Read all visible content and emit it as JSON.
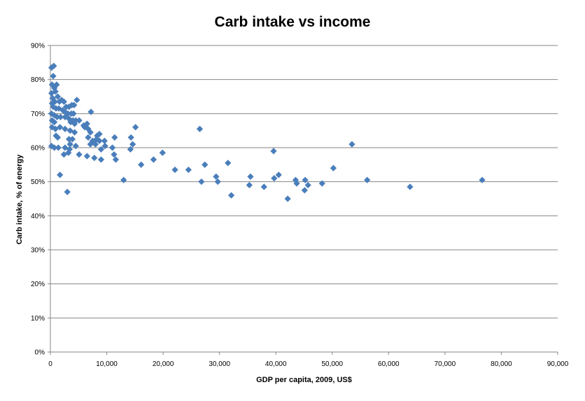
{
  "chart_data": {
    "type": "scatter",
    "title": "Carb intake vs income",
    "xlabel": "GDP per capita, 2009, US$",
    "ylabel": "Carb intake, % of energy",
    "xlim": [
      0,
      90000
    ],
    "ylim": [
      0,
      90
    ],
    "x_ticks": [
      "0",
      "10,000",
      "20,000",
      "30,000",
      "40,000",
      "50,000",
      "60,000",
      "70,000",
      "80,000",
      "90,000"
    ],
    "y_ticks": [
      "0%",
      "10%",
      "20%",
      "30%",
      "40%",
      "50%",
      "60%",
      "70%",
      "80%",
      "90%"
    ],
    "grid": "horizontal",
    "marker_color": "#4a7ebb",
    "marker": "diamond",
    "points": [
      {
        "x": 200,
        "y": 83.5
      },
      {
        "x": 600,
        "y": 84
      },
      {
        "x": 500,
        "y": 81
      },
      {
        "x": 300,
        "y": 78.5
      },
      {
        "x": 1100,
        "y": 78.5
      },
      {
        "x": 700,
        "y": 77.5
      },
      {
        "x": 200,
        "y": 76
      },
      {
        "x": 900,
        "y": 76.5
      },
      {
        "x": 400,
        "y": 74.5
      },
      {
        "x": 1300,
        "y": 75
      },
      {
        "x": 300,
        "y": 73
      },
      {
        "x": 800,
        "y": 73.5
      },
      {
        "x": 1600,
        "y": 73.5
      },
      {
        "x": 2000,
        "y": 74
      },
      {
        "x": 2400,
        "y": 73.5
      },
      {
        "x": 2800,
        "y": 72
      },
      {
        "x": 3300,
        "y": 72
      },
      {
        "x": 3800,
        "y": 72.5
      },
      {
        "x": 4200,
        "y": 72.5
      },
      {
        "x": 4700,
        "y": 74
      },
      {
        "x": 500,
        "y": 72
      },
      {
        "x": 1000,
        "y": 71.5
      },
      {
        "x": 1500,
        "y": 71.5
      },
      {
        "x": 2200,
        "y": 71
      },
      {
        "x": 2600,
        "y": 70.5
      },
      {
        "x": 3100,
        "y": 70
      },
      {
        "x": 3700,
        "y": 70
      },
      {
        "x": 4100,
        "y": 70
      },
      {
        "x": 7200,
        "y": 70.5
      },
      {
        "x": 200,
        "y": 70
      },
      {
        "x": 700,
        "y": 69.5
      },
      {
        "x": 1200,
        "y": 69
      },
      {
        "x": 1800,
        "y": 69
      },
      {
        "x": 2600,
        "y": 69
      },
      {
        "x": 3300,
        "y": 68.5
      },
      {
        "x": 4000,
        "y": 68
      },
      {
        "x": 4500,
        "y": 68
      },
      {
        "x": 5100,
        "y": 68
      },
      {
        "x": 300,
        "y": 68
      },
      {
        "x": 700,
        "y": 67.5
      },
      {
        "x": 3600,
        "y": 67.5
      },
      {
        "x": 4300,
        "y": 67
      },
      {
        "x": 5900,
        "y": 66.5
      },
      {
        "x": 6500,
        "y": 67
      },
      {
        "x": 300,
        "y": 66
      },
      {
        "x": 900,
        "y": 65.5
      },
      {
        "x": 1700,
        "y": 66
      },
      {
        "x": 2600,
        "y": 65.5
      },
      {
        "x": 3500,
        "y": 65
      },
      {
        "x": 4300,
        "y": 64.5
      },
      {
        "x": 6100,
        "y": 66
      },
      {
        "x": 6700,
        "y": 65.5
      },
      {
        "x": 7100,
        "y": 64.5
      },
      {
        "x": 8300,
        "y": 63.5
      },
      {
        "x": 8700,
        "y": 64
      },
      {
        "x": 15100,
        "y": 66
      },
      {
        "x": 1000,
        "y": 63.5
      },
      {
        "x": 1300,
        "y": 63
      },
      {
        "x": 3300,
        "y": 62.5
      },
      {
        "x": 3900,
        "y": 62.5
      },
      {
        "x": 6700,
        "y": 63
      },
      {
        "x": 7500,
        "y": 62
      },
      {
        "x": 8200,
        "y": 62.5
      },
      {
        "x": 8700,
        "y": 62
      },
      {
        "x": 9600,
        "y": 62
      },
      {
        "x": 11400,
        "y": 63
      },
      {
        "x": 14300,
        "y": 63
      },
      {
        "x": 26500,
        "y": 65.5
      },
      {
        "x": 3500,
        "y": 61
      },
      {
        "x": 4500,
        "y": 60.5
      },
      {
        "x": 7100,
        "y": 61
      },
      {
        "x": 8000,
        "y": 61
      },
      {
        "x": 9700,
        "y": 60.5
      },
      {
        "x": 14600,
        "y": 61
      },
      {
        "x": 53500,
        "y": 61
      },
      {
        "x": 200,
        "y": 60.5
      },
      {
        "x": 700,
        "y": 60
      },
      {
        "x": 1400,
        "y": 60
      },
      {
        "x": 2600,
        "y": 60
      },
      {
        "x": 3400,
        "y": 59.5
      },
      {
        "x": 9000,
        "y": 59.5
      },
      {
        "x": 11000,
        "y": 60
      },
      {
        "x": 14200,
        "y": 59.5
      },
      {
        "x": 39600,
        "y": 59
      },
      {
        "x": 3200,
        "y": 58.5
      },
      {
        "x": 5100,
        "y": 58
      },
      {
        "x": 11300,
        "y": 58
      },
      {
        "x": 19900,
        "y": 58.5
      },
      {
        "x": 2400,
        "y": 58
      },
      {
        "x": 6500,
        "y": 57.5
      },
      {
        "x": 7800,
        "y": 57
      },
      {
        "x": 9000,
        "y": 56.5
      },
      {
        "x": 11600,
        "y": 56.5
      },
      {
        "x": 18300,
        "y": 56.5
      },
      {
        "x": 16100,
        "y": 55
      },
      {
        "x": 27400,
        "y": 55
      },
      {
        "x": 31500,
        "y": 55.5
      },
      {
        "x": 22100,
        "y": 53.5
      },
      {
        "x": 24500,
        "y": 53.5
      },
      {
        "x": 50200,
        "y": 54
      },
      {
        "x": 1700,
        "y": 52
      },
      {
        "x": 29400,
        "y": 51.5
      },
      {
        "x": 35500,
        "y": 51.5
      },
      {
        "x": 40500,
        "y": 52
      },
      {
        "x": 13000,
        "y": 50.5
      },
      {
        "x": 29700,
        "y": 50
      },
      {
        "x": 26800,
        "y": 50
      },
      {
        "x": 39700,
        "y": 51
      },
      {
        "x": 43500,
        "y": 50.5
      },
      {
        "x": 45200,
        "y": 50.5
      },
      {
        "x": 56200,
        "y": 50.5
      },
      {
        "x": 76600,
        "y": 50.5
      },
      {
        "x": 35300,
        "y": 49
      },
      {
        "x": 43700,
        "y": 49.5
      },
      {
        "x": 45700,
        "y": 49
      },
      {
        "x": 48200,
        "y": 49.5
      },
      {
        "x": 37900,
        "y": 48.5
      },
      {
        "x": 63800,
        "y": 48.5
      },
      {
        "x": 3000,
        "y": 47
      },
      {
        "x": 45100,
        "y": 47.5
      },
      {
        "x": 32100,
        "y": 46
      },
      {
        "x": 42100,
        "y": 45
      }
    ]
  }
}
